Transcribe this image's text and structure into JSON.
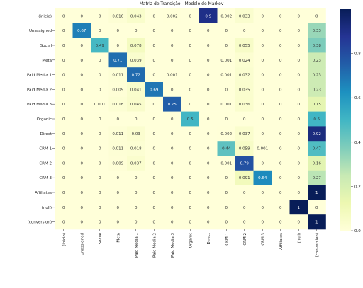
{
  "chart_data": {
    "type": "heatmap",
    "title": "Matriz de Transição - Modelo de Markov",
    "row_labels": [
      "(inicio)",
      "Unassigned",
      "Social",
      "Meta",
      "Paid Media 1",
      "Paid Media 2",
      "Paid Media 3",
      "Organic",
      "Direct",
      "CRM 1",
      "CRM 2",
      "CRM 3",
      "Affiliates",
      "(null)",
      "(conversion)"
    ],
    "col_labels": [
      "(inicio)",
      "Unassigned",
      "Social",
      "Meta",
      "Paid Media 1",
      "Paid Media 2",
      "Paid Media 3",
      "Organic",
      "Direct",
      "CRM 1",
      "CRM 2",
      "CRM 3",
      "Affiliates",
      "(null)",
      "(conversion)"
    ],
    "values": [
      [
        "0",
        "0",
        "0",
        "0.016",
        "0.043",
        "0",
        "0.002",
        "0",
        "0.9",
        "0.002",
        "0.033",
        "0",
        "0",
        "0",
        "0"
      ],
      [
        "0",
        "0.67",
        "0",
        "0",
        "0",
        "0",
        "0",
        "0",
        "0",
        "0",
        "0",
        "0",
        "0",
        "0",
        "0.33"
      ],
      [
        "0",
        "0",
        "0.49",
        "0",
        "0.078",
        "0",
        "0",
        "0",
        "0",
        "0",
        "0.055",
        "0",
        "0",
        "0",
        "0.38"
      ],
      [
        "0",
        "0",
        "0",
        "0.71",
        "0.039",
        "0",
        "0",
        "0",
        "0",
        "0.001",
        "0.024",
        "0",
        "0",
        "0",
        "0.23"
      ],
      [
        "0",
        "0",
        "0",
        "0.011",
        "0.72",
        "0",
        "0.001",
        "0",
        "0",
        "0.001",
        "0.032",
        "0",
        "0",
        "0",
        "0.23"
      ],
      [
        "0",
        "0",
        "0",
        "0.009",
        "0.041",
        "0.69",
        "0",
        "0",
        "0",
        "0",
        "0.035",
        "0",
        "0",
        "0",
        "0.23"
      ],
      [
        "0",
        "0",
        "0.001",
        "0.018",
        "0.045",
        "0",
        "0.75",
        "0",
        "0",
        "0.001",
        "0.036",
        "0",
        "0",
        "0",
        "0.15"
      ],
      [
        "0",
        "0",
        "0",
        "0",
        "0",
        "0",
        "0",
        "0.5",
        "0",
        "0",
        "0",
        "0",
        "0",
        "0",
        "0.5"
      ],
      [
        "0",
        "0",
        "0",
        "0.011",
        "0.03",
        "0",
        "0",
        "0",
        "0",
        "0.002",
        "0.037",
        "0",
        "0",
        "0",
        "0.92"
      ],
      [
        "0",
        "0",
        "0",
        "0.011",
        "0.018",
        "0",
        "0",
        "0",
        "0",
        "0.44",
        "0.059",
        "0.001",
        "0",
        "0",
        "0.47"
      ],
      [
        "0",
        "0",
        "0",
        "0.009",
        "0.037",
        "0",
        "0",
        "0",
        "0",
        "0.001",
        "0.79",
        "0",
        "0",
        "0",
        "0.16"
      ],
      [
        "0",
        "0",
        "0",
        "0",
        "0",
        "0",
        "0",
        "0",
        "0",
        "0",
        "0.091",
        "0.64",
        "0",
        "0",
        "0.27"
      ],
      [
        "0",
        "0",
        "0",
        "0",
        "0",
        "0",
        "0",
        "0",
        "0",
        "0",
        "0",
        "0",
        "0",
        "0",
        "1"
      ],
      [
        "0",
        "0",
        "0",
        "0",
        "0",
        "0",
        "0",
        "0",
        "0",
        "0",
        "0",
        "0",
        "0",
        "1",
        "0"
      ],
      [
        "0",
        "0",
        "0",
        "0",
        "0",
        "0",
        "0",
        "0",
        "0",
        "0",
        "0",
        "0",
        "0",
        "0",
        "1"
      ]
    ],
    "colormap": "YlGnBu",
    "colorbar": {
      "ticks": [
        "0.0",
        "0.2",
        "0.4",
        "0.6",
        "0.8"
      ],
      "vmin": 0,
      "vmax": 1
    }
  }
}
